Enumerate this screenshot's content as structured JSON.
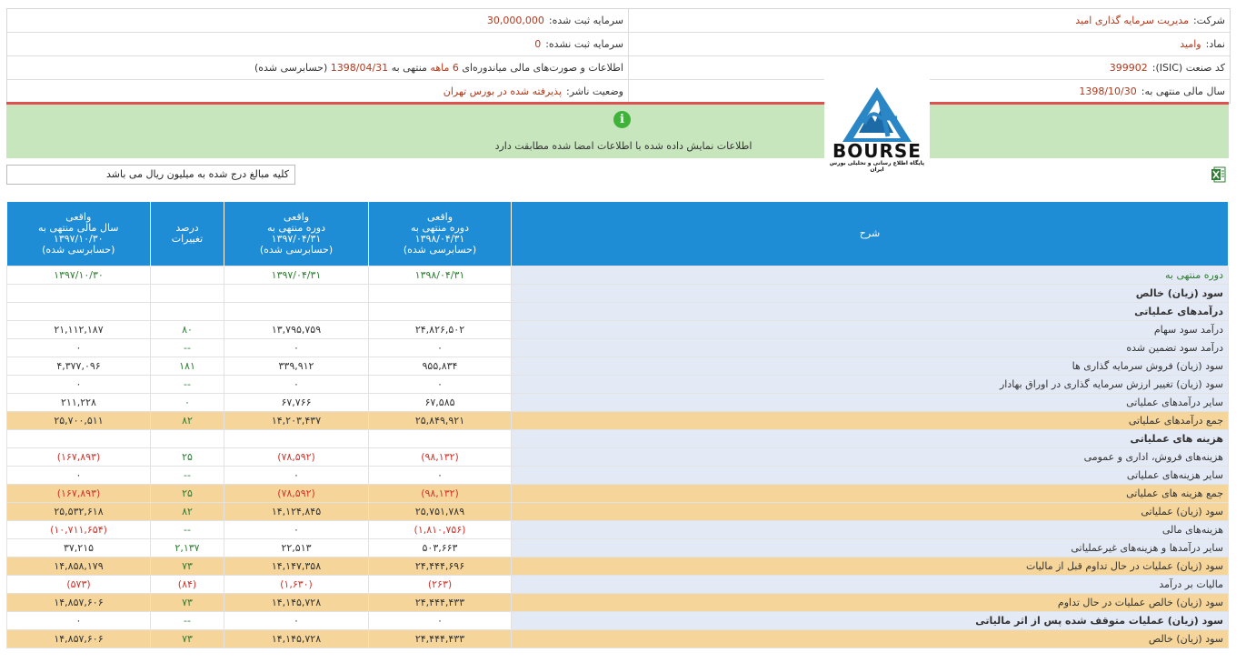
{
  "header": {
    "company_label": "شرکت:",
    "company_value": "مدیریت سرمایه گذاری امید",
    "capital_label": "سرمایه ثبت شده:",
    "capital_value": "30,000,000",
    "symbol_label": "نماد:",
    "symbol_value": "وامید",
    "unreg_capital_label": "سرمایه ثبت نشده:",
    "unreg_capital_value": "0",
    "isic_label": "کد صنعت (ISIC):",
    "isic_value": "399902",
    "report_pre": "اطلاعات و صورت‌های مالی میاندوره‌ای",
    "report_period": "6 ماهه",
    "report_mid": "منتهی به",
    "report_date": "1398/04/31",
    "report_post": "(حسابرسی شده)",
    "fiscal_label": "سال مالی منتهی به:",
    "fiscal_value": "1398/10/30",
    "status_label": "وضعیت ناشر:",
    "status_value": "پذیرفته شده در بورس تهران"
  },
  "banner": {
    "icon": "info-icon",
    "text": "اطلاعات نمایش داده شده با اطلاعات امضا شده مطابقت دارد"
  },
  "logo": {
    "word": "BOURSE",
    "subtitle": "پایگاه اطلاع رسانی و تحلیلی بورس ایران"
  },
  "note": "کلیه مبالغ درج شده به میلیون ریال می باشد",
  "table": {
    "headers": {
      "c1": [
        "واقعی",
        "سال مالی منتهی به",
        "۱۳۹۷/۱۰/۳۰",
        "(حسابرسی شده)"
      ],
      "c2": [
        "درصد",
        "تغییرات"
      ],
      "c3": [
        "واقعی",
        "دوره منتهی به",
        "۱۳۹۷/۰۴/۳۱",
        "(حسابرسی شده)"
      ],
      "c4": [
        "واقعی",
        "دوره منتهی به",
        "۱۳۹۸/۰۴/۳۱",
        "(حسابرسی شده)"
      ],
      "desc": "شرح"
    },
    "rows": [
      {
        "desc": "دوره منتهی به",
        "c1": "۱۳۹۷/۱۰/۳۰",
        "c2": "",
        "c3": "۱۳۹۷/۰۴/۳۱",
        "c4": "۱۳۹۸/۰۴/۳۱",
        "type": "period"
      },
      {
        "desc": "سود (زیان) خالص",
        "c1": "",
        "c2": "",
        "c3": "",
        "c4": "",
        "type": "bold"
      },
      {
        "desc": "درآمدهای عملیاتی",
        "c1": "",
        "c2": "",
        "c3": "",
        "c4": "",
        "type": "bold"
      },
      {
        "desc": "درآمد سود سهام",
        "c1": "۲۱,۱۱۲,۱۸۷",
        "c2": "۸۰",
        "c3": "۱۳,۷۹۵,۷۵۹",
        "c4": "۲۴,۸۲۶,۵۰۲",
        "type": "normal"
      },
      {
        "desc": "درآمد سود تضمین شده",
        "c1": "۰",
        "c2": "--",
        "c3": "۰",
        "c4": "۰",
        "type": "normal"
      },
      {
        "desc": "سود (زیان) فروش سرمایه گذاری ها",
        "c1": "۴,۳۷۷,۰۹۶",
        "c2": "۱۸۱",
        "c3": "۳۳۹,۹۱۲",
        "c4": "۹۵۵,۸۳۴",
        "type": "normal"
      },
      {
        "desc": "سود (زیان) تغییر ارزش سرمایه گذاری در اوراق بهادار",
        "c1": "۰",
        "c2": "--",
        "c3": "۰",
        "c4": "۰",
        "type": "normal"
      },
      {
        "desc": "سایر درآمدهای عملیاتی",
        "c1": "۲۱۱,۲۲۸",
        "c2": "۰",
        "c3": "۶۷,۷۶۶",
        "c4": "۶۷,۵۸۵",
        "type": "normal"
      },
      {
        "desc": "جمع درآمدهای عملیاتی",
        "c1": "۲۵,۷۰۰,۵۱۱",
        "c2": "۸۲",
        "c3": "۱۴,۲۰۳,۴۳۷",
        "c4": "۲۵,۸۴۹,۹۲۱",
        "type": "sum"
      },
      {
        "desc": "هزینه های عملیاتی",
        "c1": "",
        "c2": "",
        "c3": "",
        "c4": "",
        "type": "bold"
      },
      {
        "desc": "هزینه‌های فروش، اداری و عمومی",
        "c1": "(۱۶۷,۸۹۳)",
        "c2": "۲۵",
        "c3": "(۷۸,۵۹۲)",
        "c4": "(۹۸,۱۳۲)",
        "type": "neg"
      },
      {
        "desc": "سایر هزینه‌های عملیاتی",
        "c1": "۰",
        "c2": "--",
        "c3": "۰",
        "c4": "۰",
        "type": "normal"
      },
      {
        "desc": "جمع هزینه های عملیاتی",
        "c1": "(۱۶۷,۸۹۳)",
        "c2": "۲۵",
        "c3": "(۷۸,۵۹۲)",
        "c4": "(۹۸,۱۳۲)",
        "type": "sumneg"
      },
      {
        "desc": "سود (زیان) عملیاتی",
        "c1": "۲۵,۵۳۲,۶۱۸",
        "c2": "۸۲",
        "c3": "۱۴,۱۲۴,۸۴۵",
        "c4": "۲۵,۷۵۱,۷۸۹",
        "type": "sum"
      },
      {
        "desc": "هزینه‌های مالی",
        "c1": "(۱۰,۷۱۱,۶۵۴)",
        "c2": "--",
        "c3": "۰",
        "c4": "(۱,۸۱۰,۷۵۶)",
        "type": "negmix"
      },
      {
        "desc": "سایر درآمدها و هزینه‌های غیرعملیاتی",
        "c1": "۳۷,۲۱۵",
        "c2": "۲,۱۳۷",
        "c3": "۲۲,۵۱۳",
        "c4": "۵۰۳,۶۶۳",
        "type": "normal"
      },
      {
        "desc": "سود (زیان) عملیات در حال تداوم قبل از مالیات",
        "c1": "۱۴,۸۵۸,۱۷۹",
        "c2": "۷۳",
        "c3": "۱۴,۱۴۷,۳۵۸",
        "c4": "۲۴,۴۴۴,۶۹۶",
        "type": "sum"
      },
      {
        "desc": "مالیات بر درآمد",
        "c1": "(۵۷۳)",
        "c2": "(۸۴)",
        "c3": "(۱,۶۳۰)",
        "c4": "(۲۶۳)",
        "type": "negall"
      },
      {
        "desc": "سود (زیان) خالص عملیات در حال تداوم",
        "c1": "۱۴,۸۵۷,۶۰۶",
        "c2": "۷۳",
        "c3": "۱۴,۱۴۵,۷۲۸",
        "c4": "۲۴,۴۴۴,۴۳۳",
        "type": "sum"
      },
      {
        "desc": "سود (زیان) عملیات متوقف شده پس از اثر مالیاتی",
        "c1": "۰",
        "c2": "--",
        "c3": "۰",
        "c4": "۰",
        "type": "boldnum"
      },
      {
        "desc": "سود (زیان) خالص",
        "c1": "۱۴,۸۵۷,۶۰۶",
        "c2": "۷۳",
        "c3": "۱۴,۱۴۵,۷۲۸",
        "c4": "۲۴,۴۴۴,۴۳۳",
        "type": "sum"
      }
    ]
  }
}
